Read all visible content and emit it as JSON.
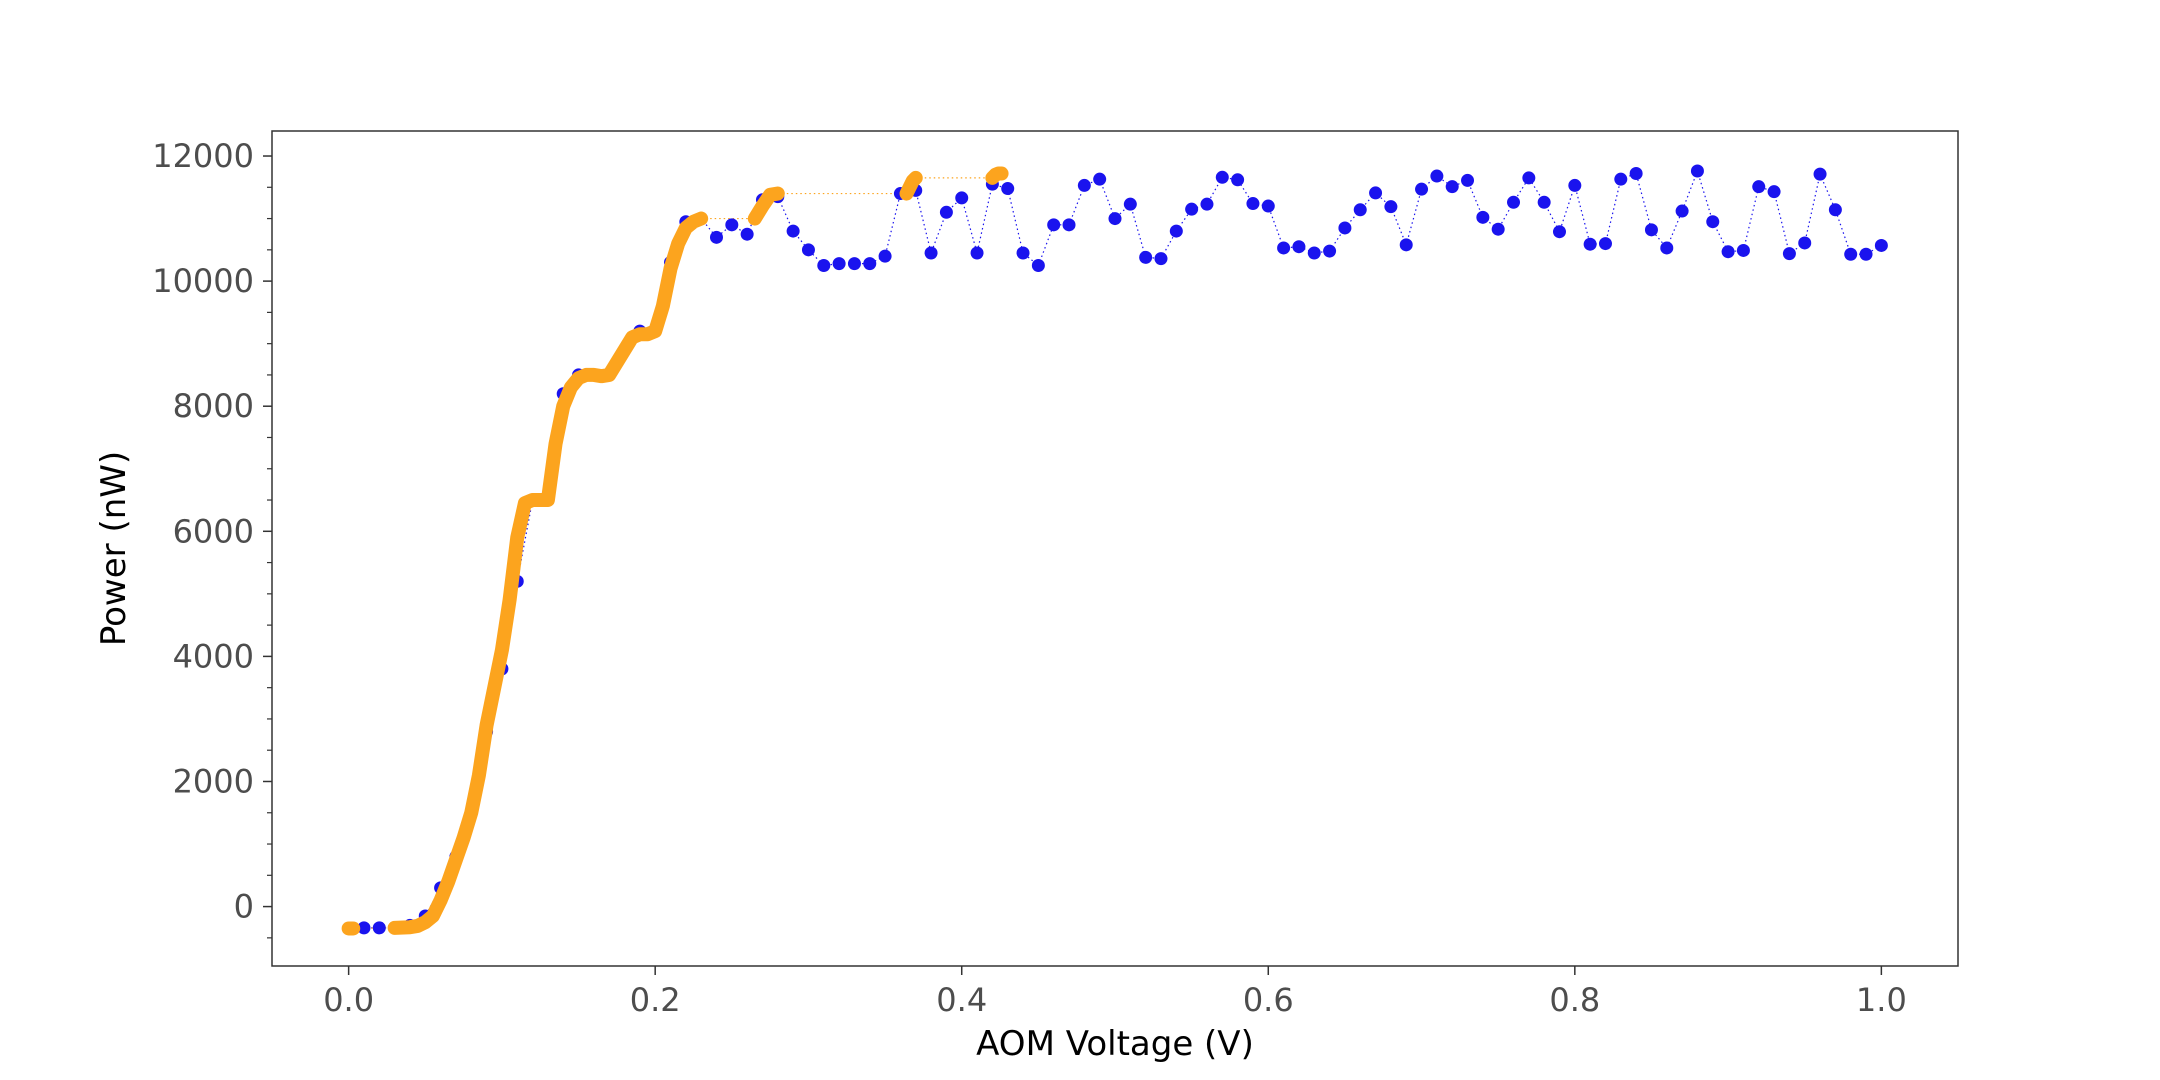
{
  "chart_data": {
    "type": "scatter",
    "title": "",
    "xlabel": "AOM Voltage (V)",
    "ylabel": "Power (nW)",
    "xlim": [
      -0.05,
      1.05
    ],
    "ylim": [
      -950,
      12400
    ],
    "x_ticks": [
      0.0,
      0.2,
      0.4,
      0.6,
      0.8,
      1.0
    ],
    "x_tick_labels": [
      "0.0",
      "0.2",
      "0.4",
      "0.6",
      "0.8",
      "1.0"
    ],
    "y_ticks": [
      0,
      2000,
      4000,
      6000,
      8000,
      10000,
      12000
    ],
    "y_tick_labels": [
      "0",
      "2000",
      "4000",
      "6000",
      "8000",
      "10000",
      "12000"
    ],
    "y_minor_step": 500,
    "grid": false,
    "legend": "none",
    "series": [
      {
        "style": "markers-dotted-line",
        "color": "#1a13ee",
        "x": [
          0.0,
          0.01,
          0.02,
          0.03,
          0.04,
          0.05,
          0.06,
          0.07,
          0.08,
          0.09,
          0.1,
          0.11,
          0.12,
          0.13,
          0.14,
          0.15,
          0.16,
          0.17,
          0.18,
          0.19,
          0.2,
          0.21,
          0.22,
          0.23,
          0.24,
          0.25,
          0.26,
          0.27,
          0.28,
          0.29,
          0.3,
          0.31,
          0.32,
          0.33,
          0.34,
          0.35,
          0.36,
          0.37,
          0.38,
          0.39,
          0.4,
          0.41,
          0.42,
          0.43,
          0.44,
          0.45,
          0.46,
          0.47,
          0.48,
          0.49,
          0.5,
          0.51,
          0.52,
          0.53,
          0.54,
          0.55,
          0.56,
          0.57,
          0.58,
          0.59,
          0.6,
          0.61,
          0.62,
          0.63,
          0.64,
          0.65,
          0.66,
          0.67,
          0.68,
          0.69,
          0.7,
          0.71,
          0.72,
          0.73,
          0.74,
          0.75,
          0.76,
          0.77,
          0.78,
          0.79,
          0.8,
          0.81,
          0.82,
          0.83,
          0.84,
          0.85,
          0.86,
          0.87,
          0.88,
          0.89,
          0.9,
          0.91,
          0.92,
          0.93,
          0.94,
          0.95,
          0.96,
          0.97,
          0.98,
          0.99,
          1.0
        ],
        "y": [
          -350,
          -340,
          -340,
          -340,
          -300,
          -150,
          300,
          800,
          1500,
          2800,
          3800,
          5200,
          6500,
          6500,
          8200,
          8500,
          8500,
          8500,
          8900,
          9200,
          9200,
          10300,
          10950,
          11000,
          10700,
          10900,
          10750,
          11300,
          11350,
          10800,
          10500,
          10250,
          10280,
          10280,
          10280,
          10400,
          11400,
          11450,
          10450,
          11100,
          11330,
          10450,
          11550,
          11480,
          10450,
          10250,
          10900,
          10900,
          11530,
          11630,
          11000,
          11230,
          10380,
          10360,
          10800,
          11150,
          11230,
          11660,
          11620,
          11240,
          11200,
          10530,
          10550,
          10450,
          10480,
          10850,
          11140,
          11410,
          11190,
          10580,
          11470,
          11680,
          11510,
          11610,
          11020,
          10830,
          11260,
          11650,
          11260,
          10790,
          11530,
          10590,
          10600,
          11630,
          11720,
          10820,
          10530,
          11120,
          11760,
          10950,
          10470,
          10490,
          11510,
          11430,
          10440,
          10610,
          11710,
          11140,
          10430,
          10430,
          10570
        ]
      },
      {
        "style": "thick-line-markers",
        "color": "#fca41e",
        "x": [
          0.0,
          0.003,
          0.03,
          0.04,
          0.045,
          0.05,
          0.055,
          0.06,
          0.065,
          0.07,
          0.075,
          0.08,
          0.085,
          0.09,
          0.095,
          0.1,
          0.105,
          0.11,
          0.115,
          0.12,
          0.125,
          0.13,
          0.135,
          0.14,
          0.145,
          0.15,
          0.155,
          0.16,
          0.165,
          0.17,
          0.175,
          0.18,
          0.185,
          0.19,
          0.195,
          0.2,
          0.205,
          0.21,
          0.215,
          0.22,
          0.225,
          0.23,
          0.265,
          0.27,
          0.275,
          0.28,
          0.364,
          0.366,
          0.368,
          0.37,
          0.42,
          0.422,
          0.424,
          0.426
        ],
        "y": [
          -350,
          -350,
          -340,
          -330,
          -310,
          -250,
          -150,
          100,
          400,
          750,
          1100,
          1500,
          2100,
          2900,
          3500,
          4100,
          4900,
          5900,
          6450,
          6500,
          6500,
          6500,
          7400,
          8000,
          8300,
          8450,
          8500,
          8500,
          8480,
          8500,
          8700,
          8900,
          9100,
          9150,
          9150,
          9200,
          9600,
          10200,
          10600,
          10850,
          10950,
          11000,
          11000,
          11200,
          11380,
          11400,
          11400,
          11500,
          11600,
          11650,
          11650,
          11700,
          11720,
          11720
        ]
      }
    ]
  }
}
